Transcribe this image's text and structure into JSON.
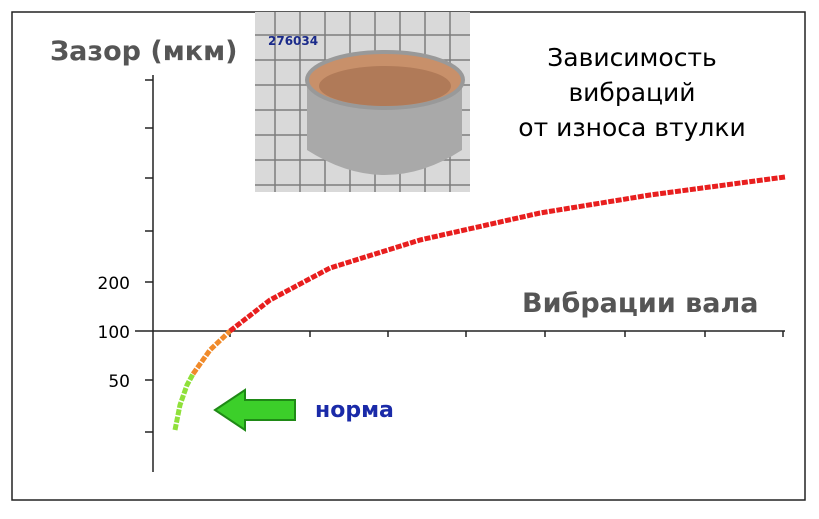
{
  "y_axis_label": "Зазор (мкм)",
  "title_lines": [
    "Зависимость",
    "вибраций",
    "от износа втулки"
  ],
  "x_axis_label": "Вибрации вала",
  "y_tick_labels": [
    "200",
    "100",
    "50"
  ],
  "photo_label": "276034",
  "legend_label": "норма"
}
